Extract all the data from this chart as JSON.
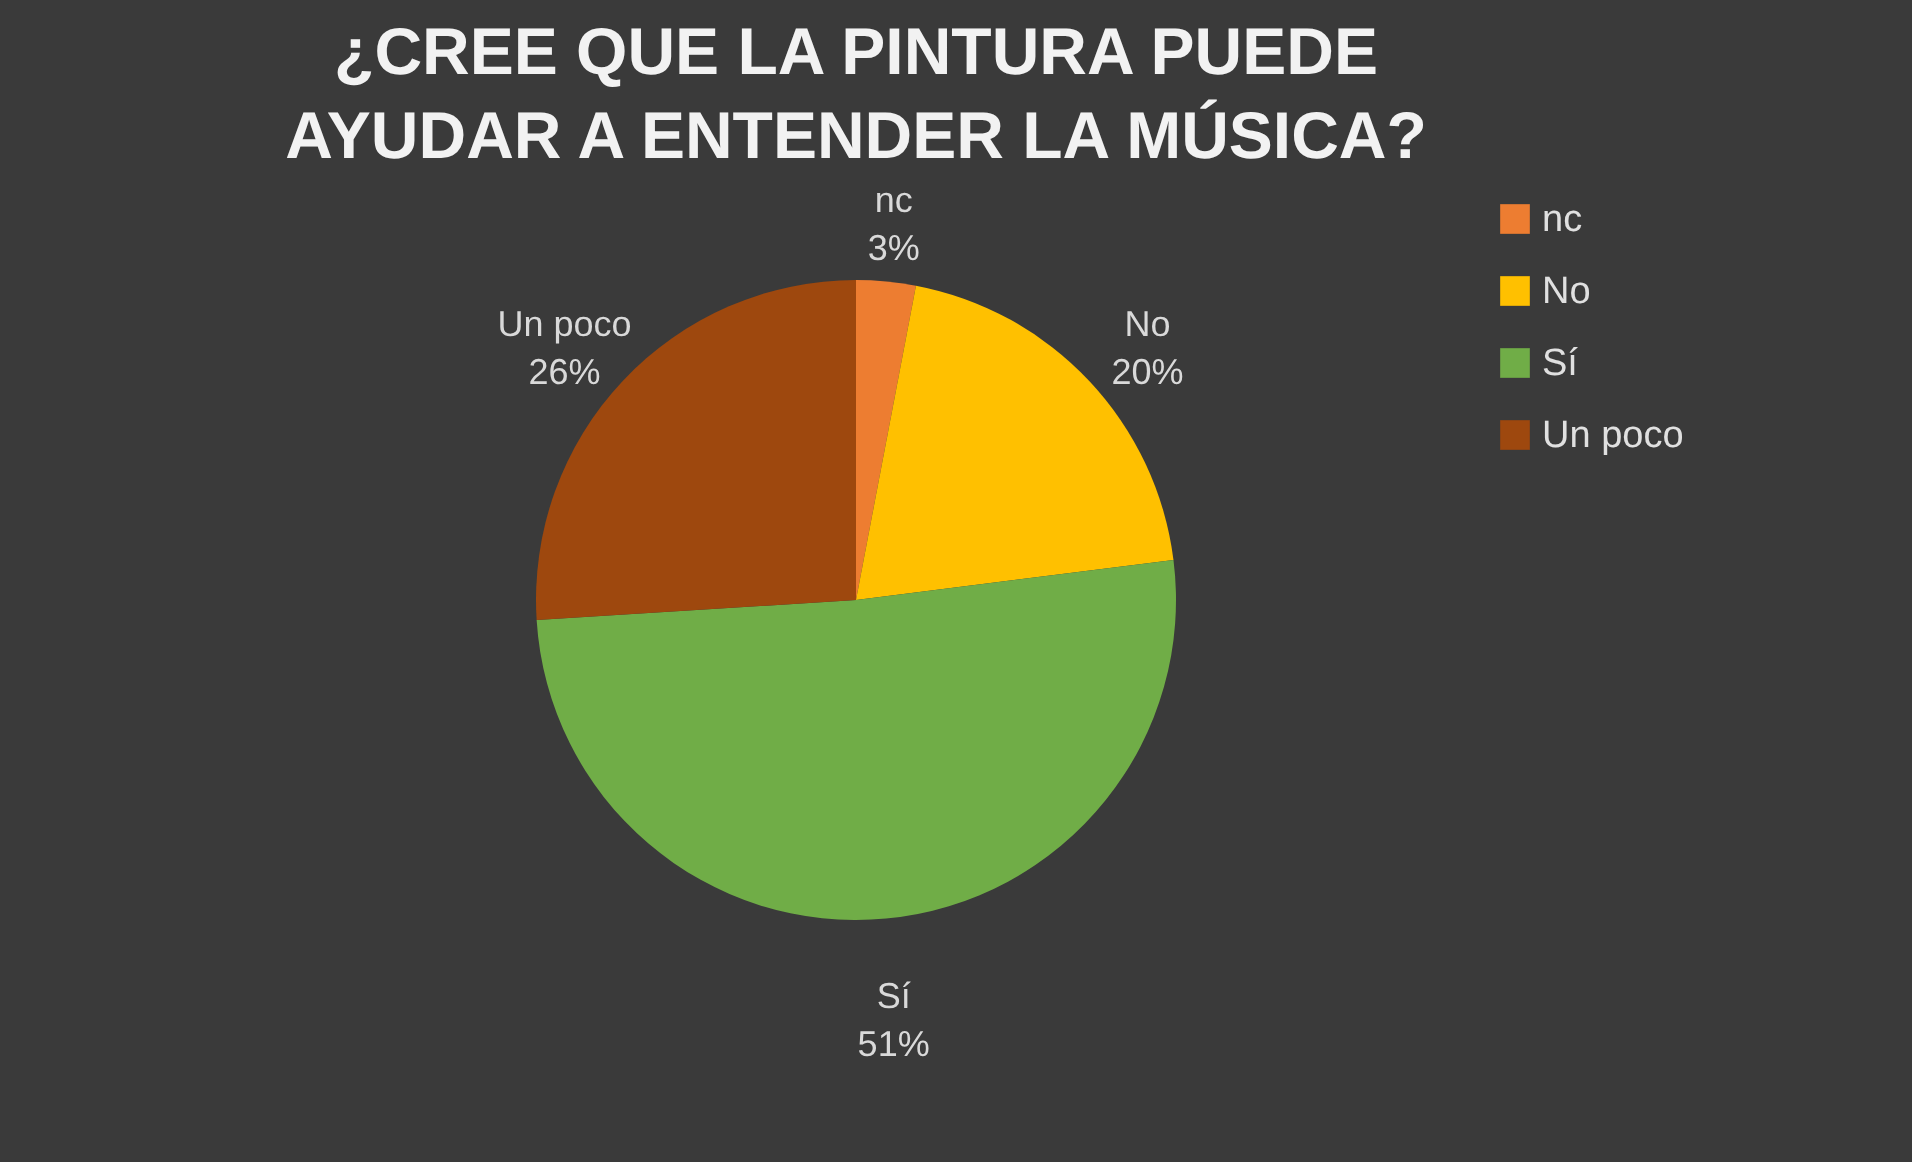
{
  "chart_data": {
    "type": "pie",
    "title": "¿CREE QUE LA PINTURA PUEDE AYUDAR A ENTENDER LA MÚSICA?",
    "categories": [
      "nc",
      "No",
      "Sí",
      "Un poco"
    ],
    "values": [
      3,
      20,
      51,
      26
    ],
    "value_labels": [
      "3%",
      "20%",
      "51%",
      "26%"
    ],
    "colors": [
      "#ed7d31",
      "#ffc000",
      "#70ad47",
      "#9e480e"
    ],
    "legend": "right"
  }
}
